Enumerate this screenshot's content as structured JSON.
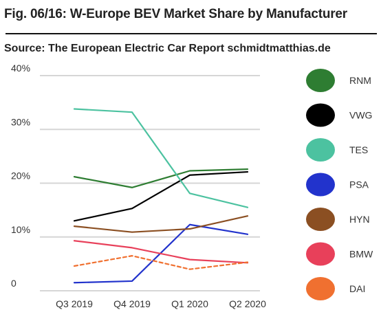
{
  "header": {
    "title": "Fig. 06/16: W-Europe BEV  Market Share by Manufacturer",
    "source": "Source: The European Electric Car Report schmidtmatthias.de"
  },
  "chart_data": {
    "type": "line",
    "title": "Fig. 06/16: W-Europe BEV  Market Share by Manufacturer",
    "subtitle": "Source: The European Electric Car Report schmidtmatthias.de",
    "xlabel": "",
    "ylabel": "",
    "categories": [
      "Q3 2019",
      "Q4 2019",
      "Q1 2020",
      "Q2 2020"
    ],
    "y_ticks": [
      {
        "value": 0,
        "label": "0"
      },
      {
        "value": 10,
        "label": "10%"
      },
      {
        "value": 20,
        "label": "20%"
      },
      {
        "value": 30,
        "label": "30%"
      },
      {
        "value": 40,
        "label": "40%"
      }
    ],
    "ylim": [
      0,
      40
    ],
    "grid": true,
    "legend_position": "right",
    "series": [
      {
        "name": "RNM",
        "color": "#2e7d32",
        "dashed": false,
        "values": [
          21.2,
          19.2,
          22.3,
          22.6
        ]
      },
      {
        "name": "VWG",
        "color": "#000000",
        "dashed": false,
        "values": [
          13.0,
          15.3,
          21.5,
          22.1
        ]
      },
      {
        "name": "TES",
        "color": "#4cc2a0",
        "dashed": false,
        "values": [
          33.8,
          33.2,
          18.1,
          15.5
        ]
      },
      {
        "name": "PSA",
        "color": "#2233cc",
        "dashed": false,
        "values": [
          1.5,
          1.8,
          12.3,
          10.5
        ]
      },
      {
        "name": "HYN",
        "color": "#8b4f22",
        "dashed": false,
        "values": [
          12.0,
          10.9,
          11.5,
          13.9
        ]
      },
      {
        "name": "BMW",
        "color": "#e8405a",
        "dashed": false,
        "values": [
          9.3,
          8.0,
          5.8,
          5.2
        ]
      },
      {
        "name": "DAI",
        "color": "#f07030",
        "dashed": true,
        "values": [
          4.6,
          6.5,
          4.0,
          5.3
        ]
      }
    ]
  }
}
